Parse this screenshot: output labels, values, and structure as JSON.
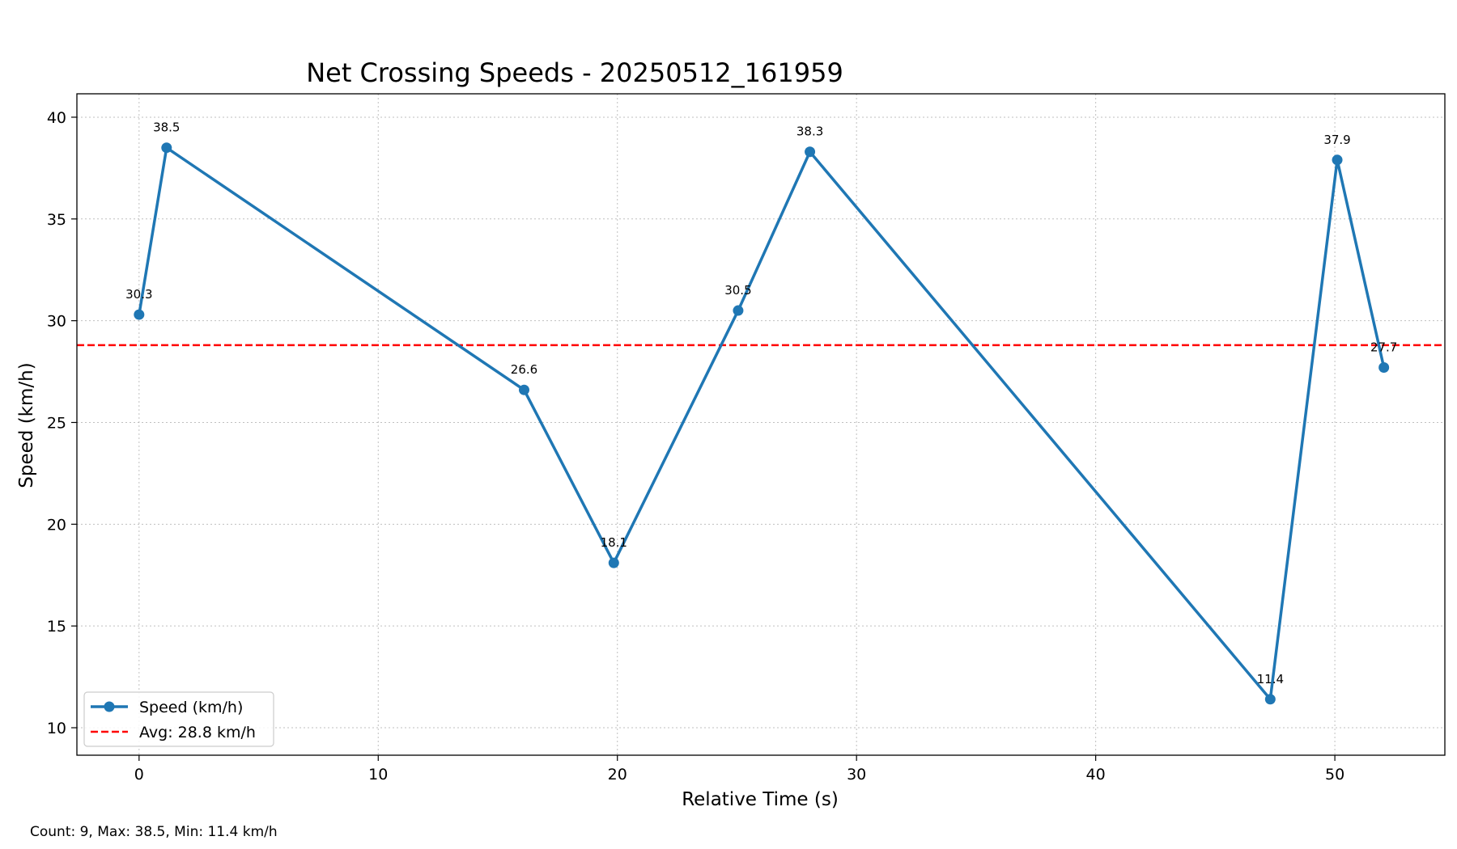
{
  "chart_data": {
    "type": "line",
    "title": "Net Crossing Speeds - 20250512_161959",
    "xlabel": "Relative Time (s)",
    "ylabel": "Speed (km/h)",
    "xlim": [
      -2.6,
      54.6
    ],
    "ylim": [
      8.65,
      41.15
    ],
    "x_ticks": [
      0,
      10,
      20,
      30,
      40,
      50
    ],
    "y_ticks": [
      10,
      15,
      20,
      25,
      30,
      35,
      40
    ],
    "grid": true,
    "legend_position": "lower-left",
    "series": [
      {
        "name": "Speed (km/h)",
        "color": "#1f77b4",
        "marker": "circle",
        "x": [
          0.0,
          1.15,
          16.1,
          19.85,
          25.05,
          28.05,
          47.3,
          50.1,
          52.05
        ],
        "y": [
          30.3,
          38.5,
          26.6,
          18.1,
          30.5,
          38.3,
          11.4,
          37.9,
          27.7
        ],
        "labels": [
          "30.3",
          "38.5",
          "26.6",
          "18.1",
          "30.5",
          "38.3",
          "11.4",
          "37.9",
          "27.7"
        ]
      }
    ],
    "reference_lines": [
      {
        "name": "Avg: 28.8 km/h",
        "y": 28.8,
        "color": "#ff0000",
        "style": "dashed"
      }
    ]
  },
  "footer": {
    "summary": "Count: 9, Max: 38.5, Min: 11.4 km/h"
  }
}
